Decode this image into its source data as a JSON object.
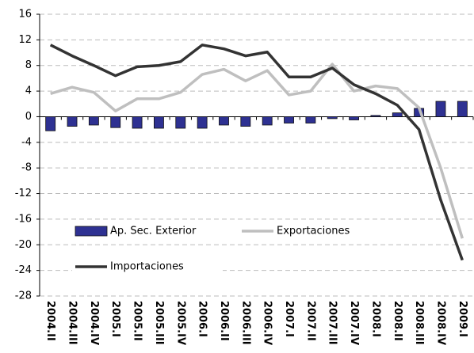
{
  "chart_data": {
    "type": "bar_line",
    "categories": [
      "2004.II",
      "2004.III",
      "2004.IV",
      "2005.I",
      "2005.II",
      "2005.III",
      "2005.IV",
      "2006.I",
      "2006.II",
      "2006.III",
      "2006.IV",
      "2007.I",
      "2007.II",
      "2007.III",
      "2007.IV",
      "2008.I",
      "2008.II",
      "2008.III",
      "2008.IV",
      "2009.I"
    ],
    "series": [
      {
        "name": "Ap. Sec. Exterior",
        "kind": "bar",
        "color": "#2e3192",
        "values": [
          -2.2,
          -1.5,
          -1.3,
          -1.7,
          -1.8,
          -1.8,
          -1.8,
          -1.8,
          -1.3,
          -1.5,
          -1.3,
          -1.0,
          -1.0,
          -0.3,
          -0.5,
          0.2,
          0.6,
          1.3,
          2.4,
          2.4
        ]
      },
      {
        "name": "Exportaciones",
        "kind": "line",
        "color": "#bfbfbf",
        "values": [
          3.6,
          4.6,
          3.8,
          0.9,
          2.8,
          2.8,
          3.8,
          6.6,
          7.4,
          5.6,
          7.2,
          3.4,
          4.0,
          8.2,
          4.0,
          4.8,
          4.4,
          1.4,
          -8,
          -19
        ]
      },
      {
        "name": "Importaciones",
        "kind": "line",
        "color": "#333333",
        "values": [
          11.2,
          9.5,
          8.0,
          6.4,
          7.8,
          8.0,
          8.6,
          11.2,
          10.6,
          9.5,
          10.1,
          6.2,
          6.2,
          7.6,
          5.0,
          3.6,
          1.8,
          -2.0,
          -13,
          -22.4
        ]
      }
    ],
    "ylim": [
      -28,
      16
    ],
    "yticks": [
      -28,
      -24,
      -20,
      -16,
      -12,
      -8,
      -4,
      0,
      4,
      8,
      12,
      16
    ],
    "grid": true
  }
}
